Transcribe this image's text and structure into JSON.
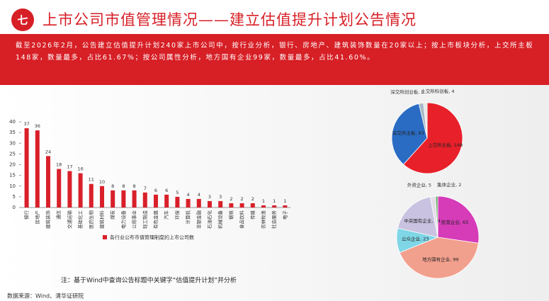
{
  "badge": "七",
  "title": "上市公司市值管理情况——建立估值提升计划公告情况",
  "summary": "截至2026年2月，公告建立估值提升计划240家上市公司中，按行业分析，银行、房地产、建筑装饰数量在20家以上；按上市板块分析，上交所主板148家，数量最多，占比61.67%；按公司属性分析，地方国有企业99家，数量最多，占比41.60%。",
  "note": "注：基于Wind中查询公告标题中关键字“估值提升计划”并分析",
  "source": "数据来源：Wind、清华证研院",
  "chart_data": [
    {
      "type": "bar",
      "categories": [
        "银行",
        "房地产",
        "建筑装饰",
        "通信",
        "交通运输",
        "基础化工",
        "医药生物",
        "建筑材料",
        "煤炭",
        "电力设备",
        "公用事业",
        "轻工制造",
        "有色金属",
        "汽车",
        "环保",
        "计算机",
        "非银金融",
        "石油石化",
        "机械设备",
        "钢铁",
        "食品饮料",
        "传媒",
        "农林牧渔",
        "社会服务",
        "电子"
      ],
      "series": [
        {
          "name": "各行业公布市值管理制度的上市公司数",
          "color": "#d9202a",
          "values": [
            37,
            36,
            24,
            18,
            17,
            16,
            11,
            10,
            8,
            8,
            8,
            7,
            6,
            6,
            5,
            4,
            4,
            3,
            3,
            2,
            2,
            2,
            1,
            1,
            1
          ]
        }
      ],
      "ylim": [
        0,
        40
      ],
      "yticks": [
        0,
        5,
        10,
        15,
        20,
        25,
        30,
        35,
        40
      ]
    },
    {
      "type": "pie",
      "values": [
        148,
        83,
        5,
        4
      ],
      "value_labels": [
        "上交所主板, 148",
        "深交所主板, 83",
        "深交所创业板, 5",
        "上交所科创板, 4"
      ],
      "colors": [
        "#e8202a",
        "#2a6cc4",
        "#a9b8c8",
        "#e6e6e6"
      ]
    },
    {
      "type": "pie",
      "values": [
        65,
        99,
        23,
        44,
        5,
        2
      ],
      "value_labels": [
        "民营企业, 65",
        "地方国有企业, 99",
        "公众企业, 23",
        "中央国有企业, 44",
        "外资企业, 5",
        "集体企业, 2"
      ],
      "colors": [
        "#d63bb8",
        "#f2a08e",
        "#7fd6e6",
        "#c9c2e0",
        "#e4dde8",
        "#5aa85a"
      ]
    }
  ]
}
